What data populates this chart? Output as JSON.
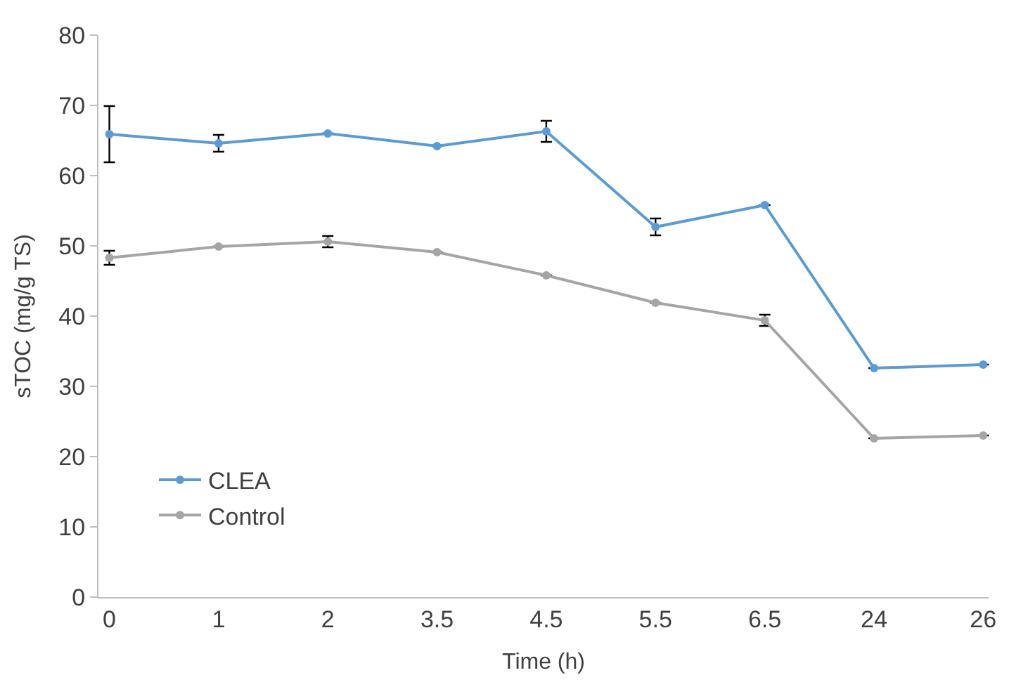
{
  "chart_data": {
    "type": "line",
    "xlabel": "Time (h)",
    "ylabel": "sTOC (mg/g TS)",
    "categories": [
      "0",
      "1",
      "2",
      "3.5",
      "4.5",
      "5.5",
      "6.5",
      "24",
      "26"
    ],
    "series": [
      {
        "name": "CLEA",
        "color": "#5b9bd5",
        "values": [
          65.9,
          64.6,
          66.0,
          64.2,
          66.3,
          52.7,
          55.8,
          32.6,
          33.1
        ],
        "errors": [
          4.0,
          1.2,
          null,
          null,
          1.5,
          1.2,
          null,
          null,
          null
        ]
      },
      {
        "name": "Control",
        "color": "#a5a5a5",
        "values": [
          48.3,
          49.9,
          50.6,
          49.1,
          45.8,
          41.9,
          39.4,
          22.6,
          23.0
        ],
        "errors": [
          1.0,
          null,
          0.8,
          null,
          null,
          null,
          0.8,
          null,
          null
        ]
      }
    ],
    "ylim": [
      0,
      80
    ],
    "yticks": [
      0,
      10,
      20,
      30,
      40,
      50,
      60,
      70,
      80
    ],
    "grid": false,
    "legend": "bottom left",
    "marker": "circle",
    "line_style": "solid"
  }
}
